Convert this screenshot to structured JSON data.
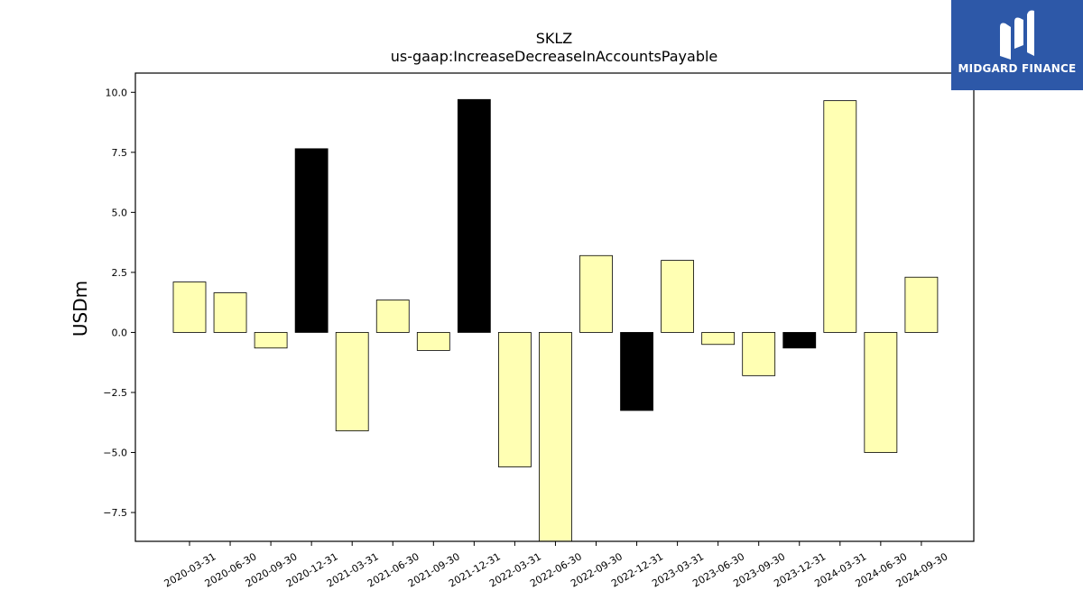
{
  "chart_data": {
    "type": "bar",
    "title": "SKLZ",
    "subtitle": "us-gaap:IncreaseDecreaseInAccountsPayable",
    "xlabel": "",
    "ylabel": "USDm",
    "categories": [
      "2020-03-31",
      "2020-06-30",
      "2020-09-30",
      "2020-12-31",
      "2021-03-31",
      "2021-06-30",
      "2021-09-30",
      "2021-12-31",
      "2022-03-31",
      "2022-06-30",
      "2022-09-30",
      "2022-12-31",
      "2023-03-31",
      "2023-06-30",
      "2023-09-30",
      "2023-12-31",
      "2024-03-31",
      "2024-06-30",
      "2024-09-30"
    ],
    "values": [
      2.1,
      1.65,
      -0.65,
      7.65,
      -4.1,
      1.35,
      -0.75,
      9.7,
      -5.6,
      -8.7,
      3.2,
      -3.25,
      3.0,
      -0.5,
      -1.8,
      -0.65,
      9.65,
      -5.0,
      2.3
    ],
    "highlight": [
      false,
      false,
      false,
      true,
      false,
      false,
      false,
      true,
      false,
      false,
      false,
      true,
      false,
      false,
      false,
      true,
      false,
      false,
      false
    ],
    "colors": {
      "default": "#ffffb3",
      "highlight": "#000000",
      "edge": "#000000"
    },
    "yticks": [
      -7.5,
      -5.0,
      -2.5,
      0.0,
      2.5,
      5.0,
      7.5,
      10.0
    ],
    "ytick_labels": [
      "−7.5",
      "−5.0",
      "−2.5",
      "0.0",
      "2.5",
      "5.0",
      "7.5",
      "10.0"
    ],
    "ylim": [
      -8.7,
      10.8
    ],
    "grid": false,
    "legend": "none"
  },
  "logo": {
    "text": "MIDGARD FINANCE",
    "bg": "#2d58a8",
    "icon": "midgard-m-logo-icon"
  }
}
